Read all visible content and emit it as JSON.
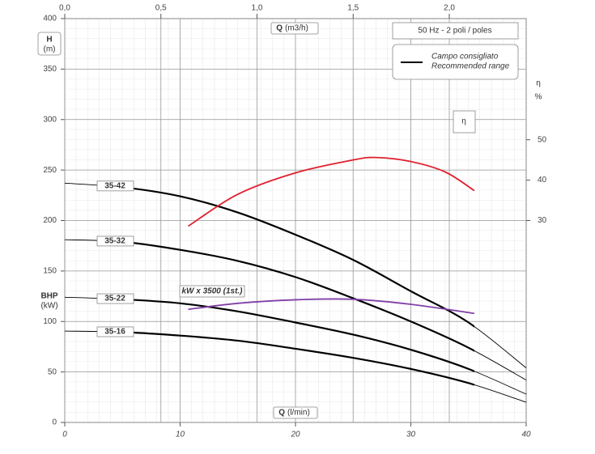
{
  "chart_data": {
    "type": "line",
    "title": "50 Hz - 2 poli / poles",
    "x_label": {
      "name": "Q",
      "unit": "(l/min)"
    },
    "x2_label": {
      "name": "Q",
      "unit": "(m3/h)"
    },
    "y_label": {
      "name": "H",
      "unit": "(m)"
    },
    "y3_label": {
      "name": "BHP",
      "unit": "(kW)"
    },
    "y2_label": {
      "name": "η",
      "unit": "%"
    },
    "xlim": [
      0,
      40
    ],
    "xticks": [
      0,
      10,
      20,
      30,
      40
    ],
    "x2lim": [
      0,
      2.4
    ],
    "x2ticks": [
      {
        "value": 0,
        "label": "0,0"
      },
      {
        "value": 0.5,
        "label": "0,5"
      },
      {
        "value": 1,
        "label": "1,0"
      },
      {
        "value": 1.5,
        "label": "1,5"
      },
      {
        "value": 2,
        "label": "2,0"
      }
    ],
    "ylim": [
      0,
      400
    ],
    "yticks": [
      0,
      50,
      100,
      150,
      200,
      250,
      300,
      350,
      400
    ],
    "y2lim": [
      -20,
      80
    ],
    "y2ticks": [
      30,
      40,
      50
    ],
    "grid": true,
    "legend": {
      "position": "top-right",
      "labels": [
        "Campo consigliato",
        "Recommended range"
      ]
    },
    "recommended_xlim": [
      6,
      35.5
    ],
    "series": [
      {
        "name": "35-42",
        "color": "#000000",
        "x": [
          0,
          5,
          10,
          15,
          20,
          25,
          30,
          35,
          40
        ],
        "values": [
          237,
          233,
          224,
          208,
          186,
          161,
          130,
          99,
          54
        ]
      },
      {
        "name": "35-32",
        "color": "#000000",
        "x": [
          0,
          5,
          10,
          15,
          20,
          25,
          30,
          35,
          40
        ],
        "values": [
          181,
          179,
          171,
          160,
          144,
          123,
          100,
          74,
          42
        ]
      },
      {
        "name": "35-22",
        "color": "#000000",
        "x": [
          0,
          5,
          10,
          15,
          20,
          25,
          30,
          35,
          40
        ],
        "values": [
          124,
          122,
          118,
          110,
          99,
          87,
          72,
          53,
          28
        ]
      },
      {
        "name": "35-16",
        "color": "#000000",
        "x": [
          0,
          5,
          10,
          15,
          20,
          25,
          30,
          35,
          40
        ],
        "values": [
          90.5,
          89.5,
          86,
          81,
          73,
          64,
          53,
          39,
          20
        ]
      },
      {
        "name": "kW x 3500 (1st.)",
        "color": "#8040a8",
        "x": [
          10.7,
          15,
          20,
          25,
          30,
          35.5
        ],
        "values": [
          112,
          118,
          121.5,
          122,
          117,
          108
        ]
      },
      {
        "name": "η",
        "color": "#e0202e",
        "axis": "y2",
        "x": [
          10.7,
          15,
          20,
          25,
          27,
          30,
          33,
          35.5
        ],
        "values": [
          28.6,
          36.5,
          41.8,
          45,
          45.6,
          44.6,
          42,
          37.4
        ]
      }
    ]
  }
}
